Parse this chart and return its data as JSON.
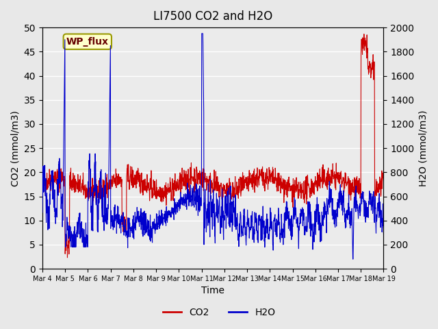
{
  "title": "LI7500 CO2 and H2O",
  "xlabel": "Time",
  "ylabel_left": "CO2 (mmol/m3)",
  "ylabel_right": "H2O (mmol/m3)",
  "annotation": "WP_flux",
  "ylim_left": [
    0,
    50
  ],
  "ylim_right": [
    0,
    2000
  ],
  "yticks_left": [
    0,
    5,
    10,
    15,
    20,
    25,
    30,
    35,
    40,
    45,
    50
  ],
  "yticks_right": [
    0,
    200,
    400,
    600,
    800,
    1000,
    1200,
    1400,
    1600,
    1800,
    2000
  ],
  "xtick_labels": [
    "Mar 4",
    "Mar 5",
    "Mar 6",
    "Mar 7",
    "Mar 8",
    "Mar 9",
    "Mar 10",
    "Mar 11",
    "Mar 12",
    "Mar 13",
    "Mar 14",
    "Mar 15",
    "Mar 16",
    "Mar 17",
    "Mar 18",
    "Mar 19"
  ],
  "co2_color": "#cc0000",
  "h2o_color": "#0000cc",
  "bg_color": "#e8e8e8",
  "plot_bg_color": "#ebebeb",
  "legend_co2": "CO2",
  "legend_h2o": "H2O",
  "n_points": 1500,
  "seed": 42
}
